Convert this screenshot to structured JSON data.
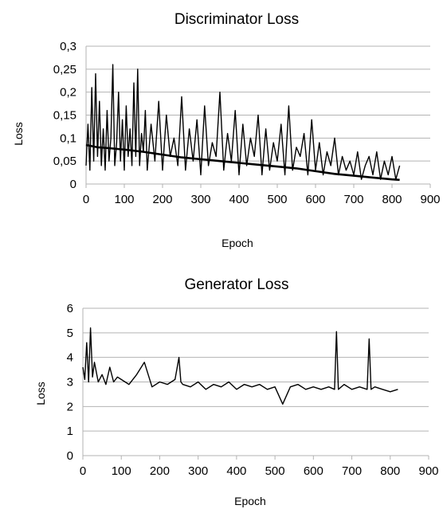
{
  "chart_data": [
    {
      "type": "line",
      "title": "Discriminator Loss",
      "xlabel": "Epoch",
      "ylabel": "Loss",
      "xlim": [
        0,
        900
      ],
      "ylim": [
        0,
        0.3
      ],
      "x_ticks": [
        0,
        100,
        200,
        300,
        400,
        500,
        600,
        700,
        800,
        900
      ],
      "y_ticks": [
        0,
        0.05,
        0.1,
        0.15,
        0.2,
        0.25,
        0.3
      ],
      "x_tick_labels": [
        "0",
        "100",
        "200",
        "300",
        "400",
        "500",
        "600",
        "700",
        "800",
        "900"
      ],
      "y_tick_labels": [
        "0",
        "0,05",
        "0,1",
        "0,15",
        "0,2",
        "0,25",
        "0,3"
      ],
      "grid": "horizontal",
      "line_color": "#000000",
      "series": [
        {
          "x": [
            0,
            5,
            10,
            15,
            20,
            25,
            30,
            35,
            40,
            45,
            50,
            55,
            60,
            65,
            70,
            75,
            80,
            85,
            90,
            95,
            100,
            105,
            110,
            115,
            120,
            125,
            130,
            135,
            140,
            145,
            150,
            155,
            160,
            170,
            180,
            190,
            200,
            210,
            220,
            230,
            240,
            250,
            260,
            270,
            280,
            290,
            300,
            310,
            320,
            330,
            340,
            350,
            360,
            370,
            380,
            390,
            400,
            410,
            420,
            430,
            440,
            450,
            460,
            470,
            480,
            490,
            500,
            510,
            520,
            530,
            540,
            550,
            560,
            570,
            580,
            590,
            600,
            610,
            620,
            630,
            640,
            650,
            660,
            670,
            680,
            690,
            700,
            710,
            720,
            730,
            740,
            750,
            760,
            770,
            780,
            790,
            800,
            810,
            820
          ],
          "values": [
            0.04,
            0.13,
            0.03,
            0.21,
            0.05,
            0.24,
            0.06,
            0.18,
            0.04,
            0.12,
            0.03,
            0.16,
            0.05,
            0.1,
            0.26,
            0.04,
            0.09,
            0.2,
            0.05,
            0.14,
            0.03,
            0.17,
            0.06,
            0.12,
            0.04,
            0.22,
            0.06,
            0.25,
            0.04,
            0.11,
            0.07,
            0.16,
            0.03,
            0.13,
            0.05,
            0.18,
            0.03,
            0.15,
            0.06,
            0.1,
            0.04,
            0.19,
            0.03,
            0.12,
            0.05,
            0.14,
            0.02,
            0.17,
            0.04,
            0.09,
            0.06,
            0.2,
            0.03,
            0.11,
            0.05,
            0.16,
            0.02,
            0.13,
            0.04,
            0.1,
            0.06,
            0.15,
            0.02,
            0.12,
            0.03,
            0.09,
            0.05,
            0.13,
            0.02,
            0.17,
            0.03,
            0.08,
            0.06,
            0.11,
            0.02,
            0.14,
            0.03,
            0.09,
            0.02,
            0.07,
            0.04,
            0.1,
            0.02,
            0.06,
            0.03,
            0.05,
            0.02,
            0.07,
            0.01,
            0.04,
            0.06,
            0.02,
            0.07,
            0.01,
            0.05,
            0.02,
            0.06,
            0.01,
            0.04
          ]
        },
        {
          "x": [
            0,
            30,
            60,
            100,
            150,
            200,
            250,
            300,
            350,
            400,
            450,
            500,
            550,
            600,
            650,
            700,
            750,
            800,
            820
          ],
          "values": [
            0.085,
            0.08,
            0.078,
            0.075,
            0.07,
            0.064,
            0.058,
            0.054,
            0.05,
            0.046,
            0.042,
            0.038,
            0.034,
            0.028,
            0.022,
            0.018,
            0.014,
            0.01,
            0.009
          ]
        }
      ]
    },
    {
      "type": "line",
      "title": "Generator Loss",
      "xlabel": "Epoch",
      "ylabel": "Loss",
      "xlim": [
        0,
        900
      ],
      "ylim": [
        0,
        6
      ],
      "x_ticks": [
        0,
        100,
        200,
        300,
        400,
        500,
        600,
        700,
        800,
        900
      ],
      "y_ticks": [
        0,
        1,
        2,
        3,
        4,
        5,
        6
      ],
      "x_tick_labels": [
        "0",
        "100",
        "200",
        "300",
        "400",
        "500",
        "600",
        "700",
        "800",
        "900"
      ],
      "y_tick_labels": [
        "0",
        "1",
        "2",
        "3",
        "4",
        "5",
        "6"
      ],
      "grid": "horizontal",
      "line_color": "#000000",
      "series": [
        {
          "x": [
            0,
            5,
            10,
            15,
            20,
            25,
            30,
            40,
            50,
            60,
            70,
            80,
            90,
            100,
            120,
            140,
            160,
            180,
            200,
            220,
            240,
            250,
            255,
            260,
            280,
            300,
            320,
            340,
            360,
            380,
            400,
            420,
            440,
            460,
            480,
            500,
            520,
            540,
            560,
            580,
            600,
            620,
            640,
            655,
            660,
            665,
            680,
            700,
            720,
            740,
            745,
            750,
            760,
            780,
            800,
            820
          ],
          "values": [
            3.6,
            3.1,
            4.6,
            3.0,
            5.2,
            3.2,
            3.8,
            3.0,
            3.3,
            2.9,
            3.6,
            3.0,
            3.2,
            3.1,
            2.9,
            3.3,
            3.8,
            2.8,
            3.0,
            2.9,
            3.1,
            4.0,
            3.0,
            2.9,
            2.8,
            3.0,
            2.7,
            2.9,
            2.8,
            3.0,
            2.7,
            2.9,
            2.8,
            2.9,
            2.7,
            2.8,
            2.1,
            2.8,
            2.9,
            2.7,
            2.8,
            2.7,
            2.8,
            2.7,
            5.05,
            2.7,
            2.9,
            2.7,
            2.8,
            2.7,
            4.75,
            2.7,
            2.8,
            2.7,
            2.6,
            2.7
          ]
        }
      ]
    }
  ]
}
